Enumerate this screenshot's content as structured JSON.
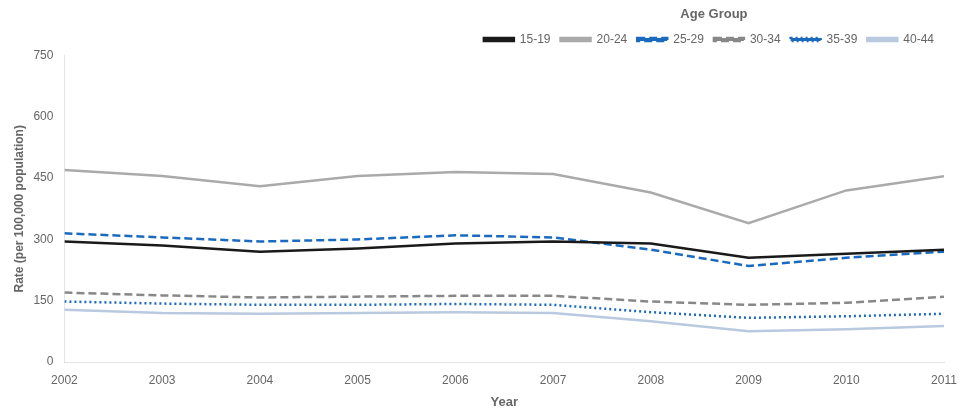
{
  "chart_data": {
    "type": "line",
    "x_label": "Year",
    "y_label": "Rate (per 100,000 population)",
    "legend_title": "Age Group",
    "x": [
      2002,
      2003,
      2004,
      2005,
      2006,
      2007,
      2008,
      2009,
      2010,
      2011
    ],
    "series": [
      {
        "name": "15-19",
        "color": "#1a1a1a",
        "line_style": "solid",
        "values": [
          295,
          285,
          270,
          278,
          290,
          295,
          290,
          255,
          265,
          275
        ]
      },
      {
        "name": "20-24",
        "color": "#aaaaaa",
        "line_style": "solid",
        "values": [
          470,
          455,
          430,
          455,
          465,
          460,
          415,
          340,
          420,
          455
        ]
      },
      {
        "name": "25-29",
        "color": "#1a6abf",
        "line_style": "dashed",
        "values": [
          315,
          305,
          295,
          300,
          310,
          305,
          275,
          235,
          255,
          270
        ]
      },
      {
        "name": "30-34",
        "color": "#888888",
        "line_style": "dashed",
        "values": [
          170,
          163,
          158,
          160,
          162,
          162,
          148,
          140,
          145,
          160
        ]
      },
      {
        "name": "35-39",
        "color": "#1a6abf",
        "line_style": "dotted",
        "values": [
          148,
          143,
          140,
          140,
          142,
          140,
          122,
          108,
          112,
          118
        ]
      },
      {
        "name": "40-44",
        "color": "#b8c9e0",
        "line_style": "solid",
        "values": [
          128,
          120,
          118,
          120,
          122,
          120,
          100,
          75,
          80,
          88
        ]
      }
    ],
    "xlim": [
      2002,
      2011
    ],
    "xticks": [
      2002,
      2003,
      2004,
      2005,
      2006,
      2007,
      2008,
      2009,
      2010,
      2011
    ],
    "ylim": [
      0,
      750
    ],
    "yticks": [
      0,
      150,
      300,
      450,
      600,
      750
    ],
    "grid": false,
    "legend": "top-right"
  }
}
